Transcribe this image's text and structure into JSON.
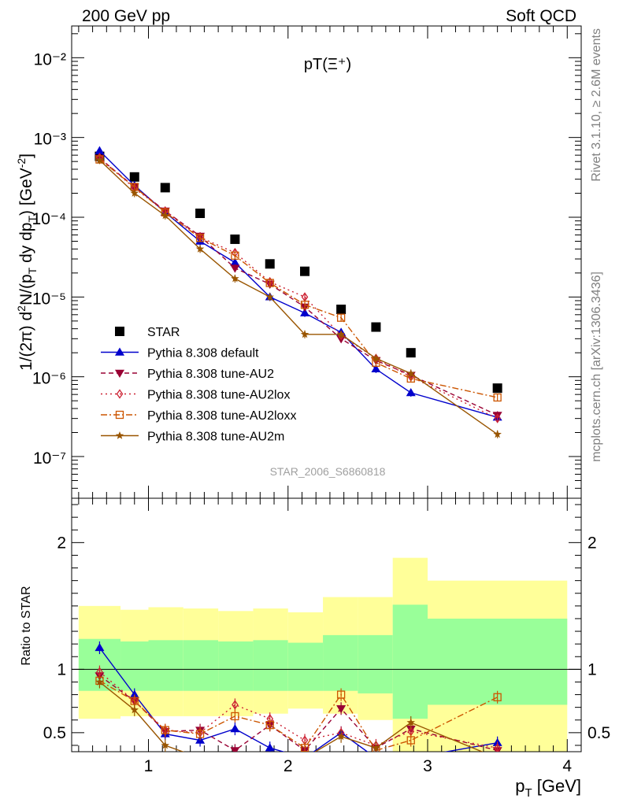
{
  "header": {
    "left": "200 GeV pp",
    "right": "Soft QCD"
  },
  "side_labels": {
    "rivet": "Rivet 3.1.10, ≥ 2.6M events",
    "mcplots": "mcplots.cern.ch [arXiv:1306.3436]"
  },
  "plot_title": "pT(Ξ⁺)",
  "watermark": "STAR_2006_S6860818",
  "chart_data": {
    "type": "line",
    "title": "pT(Ξ⁺)",
    "xlabel": "p_T [GeV]",
    "ylabel": "1/(2π) d²N/(p_T dy dp_T) [GeV⁻²]",
    "ratio_ylabel": "Ratio to STAR",
    "xlim": [
      0.45,
      4.1
    ],
    "ylim": [
      3e-08,
      0.025
    ],
    "yscale": "log",
    "ratio_ylim": [
      0.35,
      2.35
    ],
    "x_ticks": [
      "1",
      "2",
      "3",
      "4"
    ],
    "y_ticks": [
      "10⁻⁷",
      "10⁻⁶",
      "10⁻⁵",
      "10⁻⁴",
      "10⁻³",
      "10⁻²"
    ],
    "ratio_ticks": [
      "0.5",
      "1",
      "2"
    ],
    "legend_position": "bottom-left",
    "bins": [
      [
        0.5,
        0.8
      ],
      [
        0.8,
        1.0
      ],
      [
        1.0,
        1.25
      ],
      [
        1.25,
        1.5
      ],
      [
        1.5,
        1.75
      ],
      [
        1.75,
        2.0
      ],
      [
        2.0,
        2.25
      ],
      [
        2.25,
        2.5
      ],
      [
        2.5,
        2.75
      ],
      [
        2.75,
        3.0
      ],
      [
        3.0,
        4.0
      ]
    ],
    "band_green": [
      [
        0.83,
        1.24
      ],
      [
        0.83,
        1.22
      ],
      [
        0.83,
        1.23
      ],
      [
        0.83,
        1.23
      ],
      [
        0.83,
        1.22
      ],
      [
        0.83,
        1.23
      ],
      [
        0.83,
        1.21
      ],
      [
        0.83,
        1.27
      ],
      [
        0.81,
        1.27
      ],
      [
        0.61,
        1.51
      ],
      [
        0.72,
        1.4
      ]
    ],
    "band_yellow": [
      [
        0.61,
        1.5
      ],
      [
        0.63,
        1.47
      ],
      [
        0.63,
        1.49
      ],
      [
        0.63,
        1.48
      ],
      [
        0.63,
        1.46
      ],
      [
        0.65,
        1.48
      ],
      [
        0.69,
        1.45
      ],
      [
        0.65,
        1.57
      ],
      [
        0.6,
        1.57
      ],
      [
        0.3,
        1.88
      ],
      [
        0.3,
        1.7
      ]
    ],
    "star": {
      "name": "STAR",
      "x": [
        0.65,
        0.9,
        1.12,
        1.37,
        1.62,
        1.87,
        2.12,
        2.38,
        2.63,
        2.88,
        3.5
      ],
      "y": [
        0.00058,
        0.00032,
        0.000235,
        0.000112,
        5.3e-05,
        2.6e-05,
        2.1e-05,
        7e-06,
        4.2e-06,
        2e-06,
        7.2e-07
      ]
    },
    "series": [
      {
        "name": "Pythia 8.308 default",
        "color": "#0000cc",
        "dash": "",
        "marker": "triangle-up",
        "x": [
          0.65,
          0.9,
          1.12,
          1.37,
          1.62,
          1.87,
          2.12,
          2.38,
          2.63,
          2.88,
          3.5
        ],
        "y": [
          0.00068,
          0.00025,
          0.000115,
          5e-05,
          2.7e-05,
          1e-05,
          6.3e-06,
          3.6e-06,
          1.25e-06,
          6.3e-07,
          3.1e-07
        ],
        "ratio": [
          1.17,
          0.8,
          0.49,
          0.44,
          0.53,
          0.38,
          0.3,
          0.5,
          0.3,
          0.3,
          0.42
        ]
      },
      {
        "name": "Pythia 8.308 tune-AU2",
        "color": "#990033",
        "dash": "6,4",
        "marker": "triangle-down",
        "x": [
          0.65,
          0.9,
          1.12,
          1.37,
          1.62,
          1.87,
          2.12,
          2.38,
          2.63,
          2.88,
          3.5
        ],
        "y": [
          0.00055,
          0.00024,
          0.00012,
          5.8e-05,
          2.3e-05,
          1.45e-05,
          7.5e-06,
          3e-06,
          1.6e-06,
          1.05e-06,
          3.3e-07
        ],
        "ratio": [
          0.95,
          0.75,
          0.51,
          0.52,
          0.36,
          0.56,
          0.36,
          0.69,
          0.38,
          0.53,
          0.36
        ]
      },
      {
        "name": "Pythia 8.308 tune-AU2lox",
        "color": "#cc2233",
        "dash": "2,4",
        "marker": "diamond-open",
        "x": [
          0.65,
          0.9,
          1.12,
          1.37,
          1.62,
          1.87,
          2.12,
          2.38,
          2.63,
          2.88,
          3.5
        ],
        "y": [
          0.00056,
          0.00023,
          0.00012,
          5.6e-05,
          3.6e-05,
          1.55e-05,
          1e-05,
          3.3e-06,
          1.7e-06,
          1e-06,
          3e-07
        ],
        "ratio": [
          0.98,
          0.75,
          0.52,
          0.5,
          0.72,
          0.61,
          0.44,
          0.5,
          0.4,
          0.51,
          0.38
        ]
      },
      {
        "name": "Pythia 8.308 tune-AU2loxx",
        "color": "#cc5500",
        "dash": "8,3,2,3",
        "marker": "square-open",
        "x": [
          0.65,
          0.9,
          1.12,
          1.37,
          1.62,
          1.87,
          2.12,
          2.38,
          2.63,
          2.88,
          3.5
        ],
        "y": [
          0.00053,
          0.00024,
          0.000115,
          5.5e-05,
          3.3e-05,
          1.5e-05,
          8e-06,
          5.5e-06,
          1.5e-06,
          9.5e-07,
          5.5e-07
        ],
        "ratio": [
          0.91,
          0.75,
          0.52,
          0.49,
          0.63,
          0.56,
          0.38,
          0.8,
          0.36,
          0.44,
          0.78
        ]
      },
      {
        "name": "Pythia 8.308 tune-AU2m",
        "color": "#995500",
        "dash": "",
        "marker": "star",
        "x": [
          0.65,
          0.9,
          1.12,
          1.37,
          1.62,
          1.87,
          2.12,
          2.38,
          2.63,
          2.88,
          3.5
        ],
        "y": [
          0.00052,
          0.0002,
          0.000105,
          4e-05,
          1.7e-05,
          1e-05,
          3.4e-06,
          3.4e-06,
          1.7e-06,
          1.1e-06,
          1.9e-07
        ],
        "ratio": [
          0.9,
          0.68,
          0.4,
          0.3,
          0.3,
          0.3,
          0.3,
          0.47,
          0.38,
          0.58,
          0.3
        ]
      }
    ]
  }
}
